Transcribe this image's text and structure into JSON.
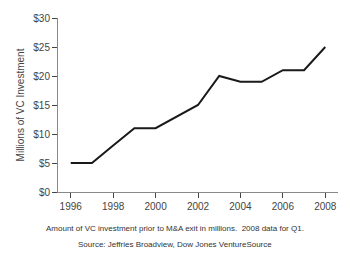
{
  "chart_data": {
    "type": "line",
    "x": [
      1996,
      1997,
      1998,
      1999,
      2000,
      2001,
      2002,
      2003,
      2004,
      2005,
      2006,
      2007,
      2008
    ],
    "values": [
      5,
      5,
      8,
      11,
      11,
      13,
      15,
      20,
      19,
      19,
      21,
      21,
      25
    ],
    "color": "#1a1a1a",
    "y_label": "Millions of VC Investment",
    "xlim": [
      1995.4,
      2008.6
    ],
    "xticks": [
      1996,
      1998,
      2000,
      2002,
      2004,
      2006,
      2008
    ],
    "ylim": [
      0,
      30
    ],
    "yticks": [
      {
        "value": 0,
        "label": "$0"
      },
      {
        "value": 5,
        "label": "$5"
      },
      {
        "value": 10,
        "label": "$10"
      },
      {
        "value": 15,
        "label": "$15"
      },
      {
        "value": 20,
        "label": "$20"
      },
      {
        "value": 25,
        "label": "$25"
      },
      {
        "value": 30,
        "label": "$30"
      }
    ],
    "annotations": [
      "Amount of VC investment prior to M&A exit in millions.  2008 data for Q1.",
      "Source: Jeffries Broadview, Dow Jones VentureSource"
    ],
    "grid": false
  }
}
